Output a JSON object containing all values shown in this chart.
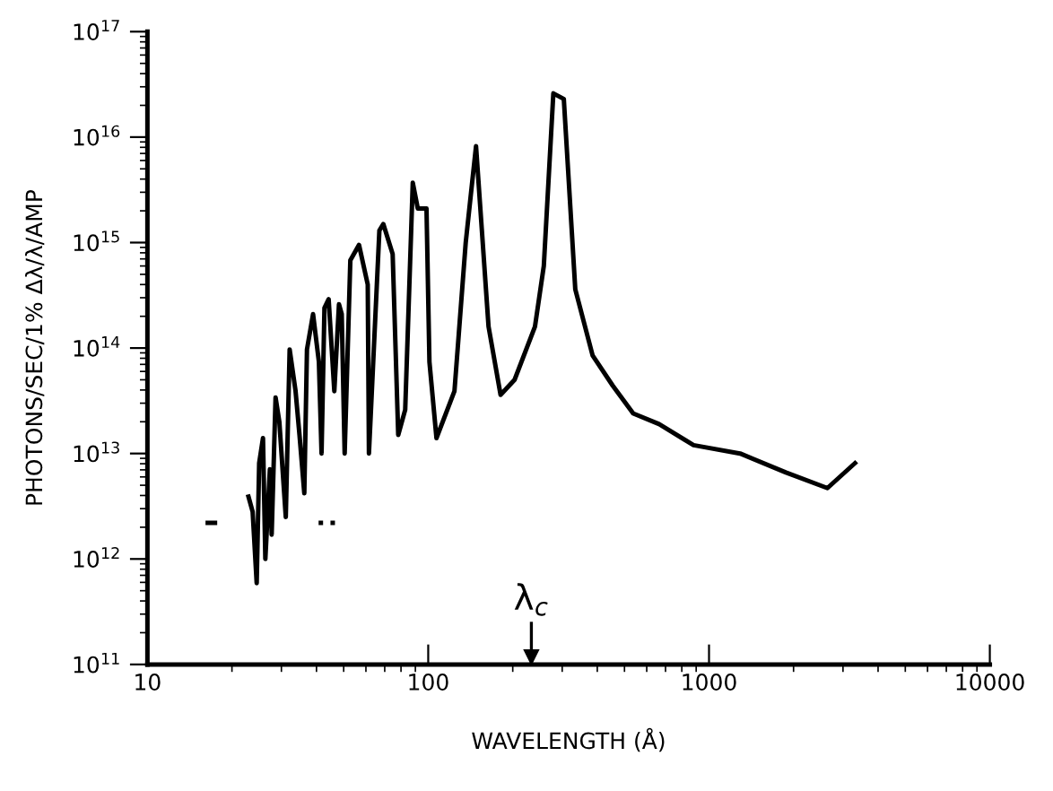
{
  "chart_data": {
    "type": "line",
    "xlabel": "WAVELENGTH (Å)",
    "ylabel": "PHOTONS/SEC/1% Δλ/λ/AMP",
    "log": "xy",
    "grid": false,
    "marker": "none",
    "xlim": [
      10,
      10000
    ],
    "xticks": [
      10,
      100,
      1000,
      10000
    ],
    "ylim": [
      100000000000.0,
      1e+17
    ],
    "yticks": [
      {
        "value": 100000000000.0,
        "label": "10$^{11}$"
      },
      {
        "value": 1000000000000.0,
        "label": "10$^{12}$"
      },
      {
        "value": 10000000000000.0,
        "label": "10$^{13}$"
      },
      {
        "value": 100000000000000.0,
        "label": "10$^{14}$"
      },
      {
        "value": 1000000000000000.0,
        "label": "10$^{15}$"
      },
      {
        "value": 1e+16,
        "label": "10$^{16}$"
      },
      {
        "value": 1e+17,
        "label": "10$^{17}$"
      }
    ],
    "ref_lines": [
      {
        "axis": "x",
        "value": 233,
        "label": "λ$_{c}$"
      }
    ],
    "series": [
      {
        "color": "#000000",
        "line_style": "solid",
        "x": [
          22.9,
          23.7,
          24.5,
          25.0,
          25.8,
          26.3,
          27.3,
          27.7,
          28.6,
          29.5,
          31.1,
          32.1,
          33.7,
          34.8,
          36.2,
          37.0,
          38.9,
          40.8,
          41.7,
          42.7,
          44.2,
          46.3,
          48.1,
          49.2,
          50.4,
          52.8,
          56.7,
          60.9,
          61.5,
          67.0,
          69.2,
          74.7,
          78.2,
          82.8,
          88.1,
          91.8,
          98.6,
          101,
          107,
          124,
          136,
          148,
          164,
          181,
          203,
          240,
          258,
          279,
          304,
          334,
          385,
          454,
          537,
          664,
          881,
          1290,
          1880,
          2640,
          3310
        ],
        "values": [
          3900000000000.0,
          2800000000000.0,
          590000000000.0,
          8100000000000.0,
          14000000000000.0,
          1000000000000.0,
          7100000000000.0,
          1700000000000.0,
          34000000000000.0,
          20000000000000.0,
          2500000000000.0,
          97000000000000.0,
          39000000000000.0,
          15000000000000.0,
          4200000000000.0,
          97000000000000.0,
          210000000000000.0,
          74000000000000.0,
          10000000000000.0,
          240000000000000.0,
          290000000000000.0,
          39000000000000.0,
          260000000000000.0,
          210000000000000.0,
          10000000000000.0,
          680000000000000.0,
          950000000000000.0,
          400000000000000.0,
          10000000000000.0,
          1300000000000000.0,
          1500000000000000.0,
          780000000000000.0,
          15000000000000.0,
          26000000000000.0,
          3700000000000000.0,
          2100000000000000.0,
          2100000000000000.0,
          74000000000000.0,
          14000000000000.0,
          39000000000000.0,
          1000000000000000.0,
          8200000000000000.0,
          160000000000000.0,
          36000000000000.0,
          50000000000000.0,
          160000000000000.0,
          600000000000000.0,
          2.6e+16,
          2.3e+16,
          360000000000000.0,
          85000000000000.0,
          44000000000000.0,
          24000000000000.0,
          19000000000000.0,
          12000000000000.0,
          10000000000000.0,
          6600000000000.0,
          4700000000000.0,
          8100000000000.0
        ]
      },
      {
        "color": "#000000",
        "line_style": "solid",
        "x": [
          16.4,
          17.4
        ],
        "values": [
          2200000000000.0,
          2200000000000.0
        ]
      },
      {
        "color": "#000000",
        "line_style": "dotted",
        "x": [
          40.7,
          47.6
        ],
        "values": [
          2200000000000.0,
          2200000000000.0
        ]
      }
    ]
  }
}
